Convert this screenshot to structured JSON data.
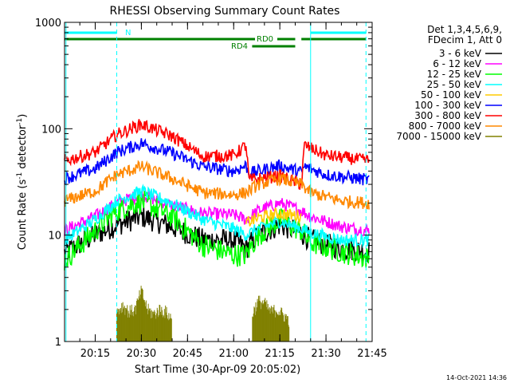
{
  "chart_data": {
    "type": "line",
    "title": "RHESSI Observing Summary Count Rates",
    "xlabel": "Start Time (30-Apr-09 20:05:02)",
    "ylabel_main": "Count Rate (s",
    "ylabel_sup1": "-1",
    "ylabel_mid": " detector",
    "ylabel_sup2": "-1",
    "ylabel_end": ")",
    "y_scale": "log",
    "ylim": [
      1,
      1000
    ],
    "y_ticks": [
      1,
      10,
      100,
      1000
    ],
    "y_tick_labels": [
      "1",
      "10",
      "100",
      "1000"
    ],
    "x_start": "20:05:02",
    "x_end": "21:45:00",
    "x_ticks": [
      "20:15",
      "20:30",
      "20:45",
      "21:00",
      "21:15",
      "21:30",
      "21:45"
    ],
    "timestamp": "14-Oct-2021 14:36",
    "legend_placement": "right",
    "legend_header": [
      "Det 1,3,4,5,6,9,",
      "FDecim 1, Att 0"
    ],
    "series": [
      {
        "name": "3 - 6 keV",
        "color": "#000000",
        "times": [
          "20:05",
          "20:15",
          "20:22",
          "20:30",
          "20:40",
          "20:50",
          "21:00",
          "21:04",
          "21:08",
          "21:15",
          "21:22",
          "21:25",
          "21:35",
          "21:44"
        ],
        "values": [
          6.8,
          10,
          12.5,
          15,
          12,
          9,
          9,
          7.5,
          10,
          12.5,
          10.5,
          9,
          7.5,
          7
        ]
      },
      {
        "name": "6 - 12 keV",
        "color": "#ff00ff",
        "times": [
          "20:05",
          "20:15",
          "20:22",
          "20:30",
          "20:40",
          "20:50",
          "21:00",
          "21:04",
          "21:08",
          "21:15",
          "21:22",
          "21:25",
          "21:35",
          "21:44"
        ],
        "values": [
          11,
          15,
          20,
          24,
          19,
          16,
          15.5,
          14,
          17,
          20,
          17,
          15,
          12,
          11
        ]
      },
      {
        "name": "12 - 25 keV",
        "color": "#00ff00",
        "times": [
          "20:05",
          "20:15",
          "20:22",
          "20:30",
          "20:40",
          "20:50",
          "21:00",
          "21:04",
          "21:08",
          "21:15",
          "21:22",
          "21:25",
          "21:35",
          "21:44"
        ],
        "values": [
          5.8,
          11,
          17,
          21,
          15,
          8,
          6.5,
          6.5,
          10,
          14,
          11,
          8.5,
          7,
          6
        ]
      },
      {
        "name": "25 - 50 keV",
        "color": "#00ffff",
        "times": [
          "20:05",
          "20:15",
          "20:22",
          "20:30",
          "20:40",
          "20:50",
          "21:00",
          "21:04",
          "21:08",
          "21:15",
          "21:22",
          "21:25",
          "21:35",
          "21:44"
        ],
        "values": [
          9,
          14,
          21,
          26,
          20,
          14,
          11.5,
          10,
          11.5,
          13.5,
          11.5,
          10.5,
          9,
          9
        ]
      },
      {
        "name": "50 - 100 keV",
        "color": "#ffcc00",
        "times": [
          "21:04",
          "21:08",
          "21:15",
          "21:22"
        ],
        "values": [
          13,
          14.5,
          16,
          15
        ]
      },
      {
        "name": "100 - 300 keV",
        "color": "#0000ff",
        "times": [
          "20:05",
          "20:15",
          "20:22",
          "20:30",
          "20:40",
          "20:50",
          "21:00",
          "21:04",
          "21:05",
          "21:15",
          "21:22",
          "21:23",
          "21:30",
          "21:44"
        ],
        "values": [
          34,
          42,
          60,
          73,
          59,
          44,
          40,
          45,
          38,
          45,
          39,
          44,
          37,
          33
        ]
      },
      {
        "name": "300 - 800 keV",
        "color": "#ff0000",
        "times": [
          "20:05",
          "20:15",
          "20:22",
          "20:30",
          "20:40",
          "20:50",
          "21:00",
          "21:04",
          "21:05",
          "21:15",
          "21:22",
          "21:23",
          "21:30",
          "21:44"
        ],
        "values": [
          50,
          60,
          88,
          110,
          85,
          55,
          56,
          70,
          33,
          36,
          30,
          70,
          56,
          50
        ]
      },
      {
        "name": "800 - 7000 keV",
        "color": "#ff8800",
        "times": [
          "20:05",
          "20:15",
          "20:22",
          "20:30",
          "20:40",
          "20:50",
          "21:00",
          "21:04",
          "21:08",
          "21:15",
          "21:22",
          "21:25",
          "21:35",
          "21:44"
        ],
        "values": [
          21,
          26,
          37,
          44,
          34,
          25,
          24,
          25,
          30,
          34,
          30,
          25,
          21,
          20
        ]
      },
      {
        "name": "7000 - 15000 keV",
        "color": "#808000",
        "times": [
          "20:22",
          "20:24",
          "20:26",
          "20:28",
          "20:30",
          "20:32",
          "20:34",
          "20:36",
          "20:38",
          "20:40",
          "21:06",
          "21:08",
          "21:10",
          "21:12",
          "21:14",
          "21:16",
          "21:18"
        ],
        "values": [
          1.9,
          2.2,
          1.9,
          2,
          3,
          2,
          1.8,
          2,
          1.9,
          1.6,
          1.8,
          2.4,
          2.3,
          1.9,
          2,
          1.8,
          1.6
        ]
      }
    ],
    "flags": [
      {
        "label": "N",
        "color": "#00ffff",
        "segments": [
          [
            "20:05",
            "20:22"
          ],
          [
            "21:25",
            "21:43"
          ]
        ]
      },
      {
        "label": "RD0",
        "color": "#008000",
        "segments": [
          [
            "20:05",
            "21:20"
          ],
          [
            "21:22",
            "21:43"
          ]
        ]
      },
      {
        "label": "RD4",
        "color": "#008000",
        "segments": [
          [
            "21:06",
            "21:20"
          ]
        ]
      }
    ],
    "markers": [
      {
        "time": "20:05:30",
        "style": "solid",
        "color": "#00ffff"
      },
      {
        "time": "20:22:00",
        "style": "dashed",
        "color": "#00ffff"
      },
      {
        "time": "21:25:00",
        "style": "solid",
        "color": "#00ffff"
      },
      {
        "time": "21:43:00",
        "style": "dashed",
        "color": "#00ffff"
      }
    ]
  }
}
